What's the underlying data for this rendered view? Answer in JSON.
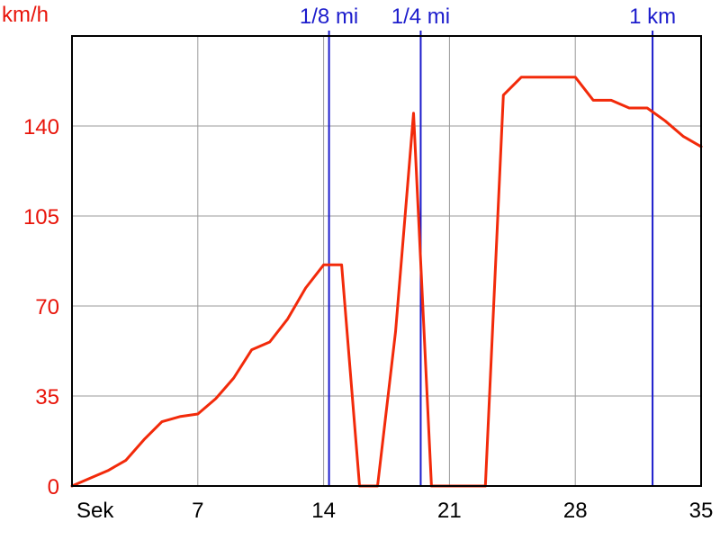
{
  "chart_data": {
    "type": "line",
    "ylabel": "km/h",
    "x_unit_label": "Sek",
    "xlim": [
      0,
      35
    ],
    "ylim": [
      0,
      175
    ],
    "x_ticks": [
      7,
      14,
      21,
      28,
      35
    ],
    "y_ticks": [
      0,
      35,
      70,
      105,
      140
    ],
    "grid": true,
    "colors": {
      "line": "#f22a0a",
      "y_axis_text": "#e8140a",
      "marker": "#1c1ccc",
      "grid": "#9a9a9a",
      "frame": "#000000"
    },
    "distance_markers": [
      {
        "label": "1/8 mi",
        "x": 14.3
      },
      {
        "label": "1/4 mi",
        "x": 19.4
      },
      {
        "label": "1 km",
        "x": 32.3
      }
    ],
    "series": [
      {
        "x": [
          0,
          1,
          2,
          3,
          4,
          5,
          6,
          7,
          8,
          9,
          10,
          11,
          12,
          13,
          14,
          15,
          16,
          17,
          18,
          19,
          20,
          21,
          22,
          23,
          24,
          25,
          26,
          27,
          28,
          29,
          30,
          31,
          32,
          33,
          34,
          35
        ],
        "y": [
          0,
          3,
          6,
          10,
          18,
          25,
          27,
          28,
          34,
          42,
          53,
          56,
          65,
          77,
          86,
          86,
          0,
          0,
          60,
          145,
          0,
          0,
          0,
          0,
          152,
          159,
          159,
          159,
          159,
          150,
          150,
          147,
          147,
          142,
          136,
          132
        ]
      }
    ]
  }
}
